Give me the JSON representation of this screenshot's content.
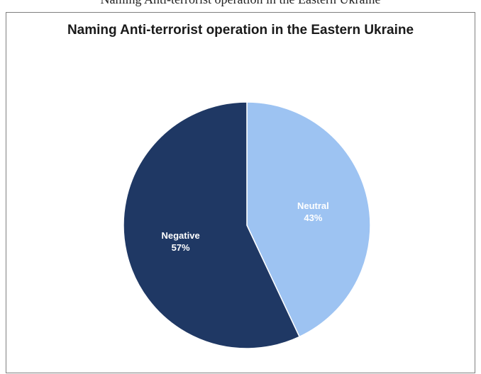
{
  "caption_fragment": "Naming Anti-terrorist operation in the Eastern Ukraine",
  "chart_data": {
    "type": "pie",
    "title": "Naming Anti-terrorist operation in the Eastern Ukraine",
    "slices": [
      {
        "label": "Neutral",
        "value": 43,
        "value_label": "43%",
        "color": "#9dc3f2",
        "text_color": "#ffffff"
      },
      {
        "label": "Negative",
        "value": 57,
        "value_label": "57%",
        "color": "#1f3864",
        "text_color": "#ffffff"
      }
    ],
    "start": "12 o'clock",
    "direction": "clockwise",
    "legend": "none"
  }
}
